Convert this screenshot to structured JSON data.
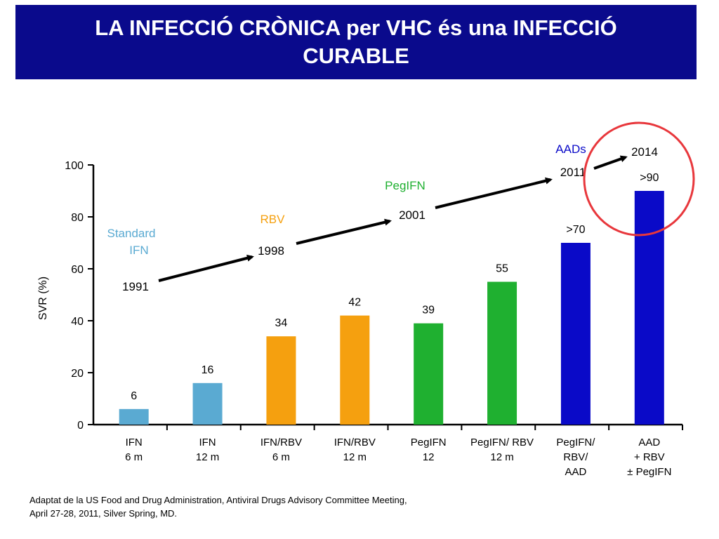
{
  "slide": {
    "title_line1": "LA INFECCIÓ CRÒNICA per VHC és una INFECCIÓ",
    "title_line2": "CURABLE",
    "footnote_line1": "Adaptat de la US Food and Drug Administration, Antiviral Drugs Advisory Committee Meeting,",
    "footnote_line2": "April 27-28, 2011, Silver Spring, MD."
  },
  "colors": {
    "banner": "#0a0a8c",
    "ifn": "#5aaad2",
    "rbv": "#f5a00f",
    "pegifn": "#1fb030",
    "aad": "#0a0ac8",
    "circle": "#e8373c"
  },
  "chart_data": {
    "type": "bar",
    "title": "",
    "ylabel": "SVR (%)",
    "ylim": [
      0,
      100
    ],
    "yticks": [
      0,
      20,
      40,
      60,
      80,
      100
    ],
    "grid": false,
    "categories": [
      [
        "IFN",
        "6 m"
      ],
      [
        "IFN",
        "12 m"
      ],
      [
        "IFN/RBV",
        "6 m"
      ],
      [
        "IFN/RBV",
        "12 m"
      ],
      [
        "PegIFN",
        "12"
      ],
      [
        "PegIFN/ RBV",
        "12 m"
      ],
      [
        "PegIFN/",
        "RBV/",
        "AAD"
      ],
      [
        "AAD",
        "+ RBV",
        "± PegIFN"
      ]
    ],
    "values": [
      6,
      16,
      34,
      42,
      39,
      55,
      70,
      90
    ],
    "value_labels": [
      "6",
      "16",
      "34",
      "42",
      "39",
      "55",
      ">70",
      ">90"
    ],
    "bar_groups": [
      "ifn",
      "ifn",
      "rbv",
      "rbv",
      "pegifn",
      "pegifn",
      "aad",
      "aad"
    ],
    "annotations": {
      "eras": [
        {
          "lines": [
            "Standard",
            "IFN"
          ],
          "color": "ifn"
        },
        {
          "lines": [
            "RBV"
          ],
          "color": "rbv"
        },
        {
          "lines": [
            "PegIFN"
          ],
          "color": "pegifn"
        },
        {
          "lines": [
            "AADs"
          ],
          "color": "aad"
        }
      ],
      "years": [
        "1991",
        "1998",
        "2001",
        "2011",
        "2014"
      ],
      "highlight": "red circle around the AAD + RBV ± PegIFN bar and the 2014 milestone"
    }
  }
}
